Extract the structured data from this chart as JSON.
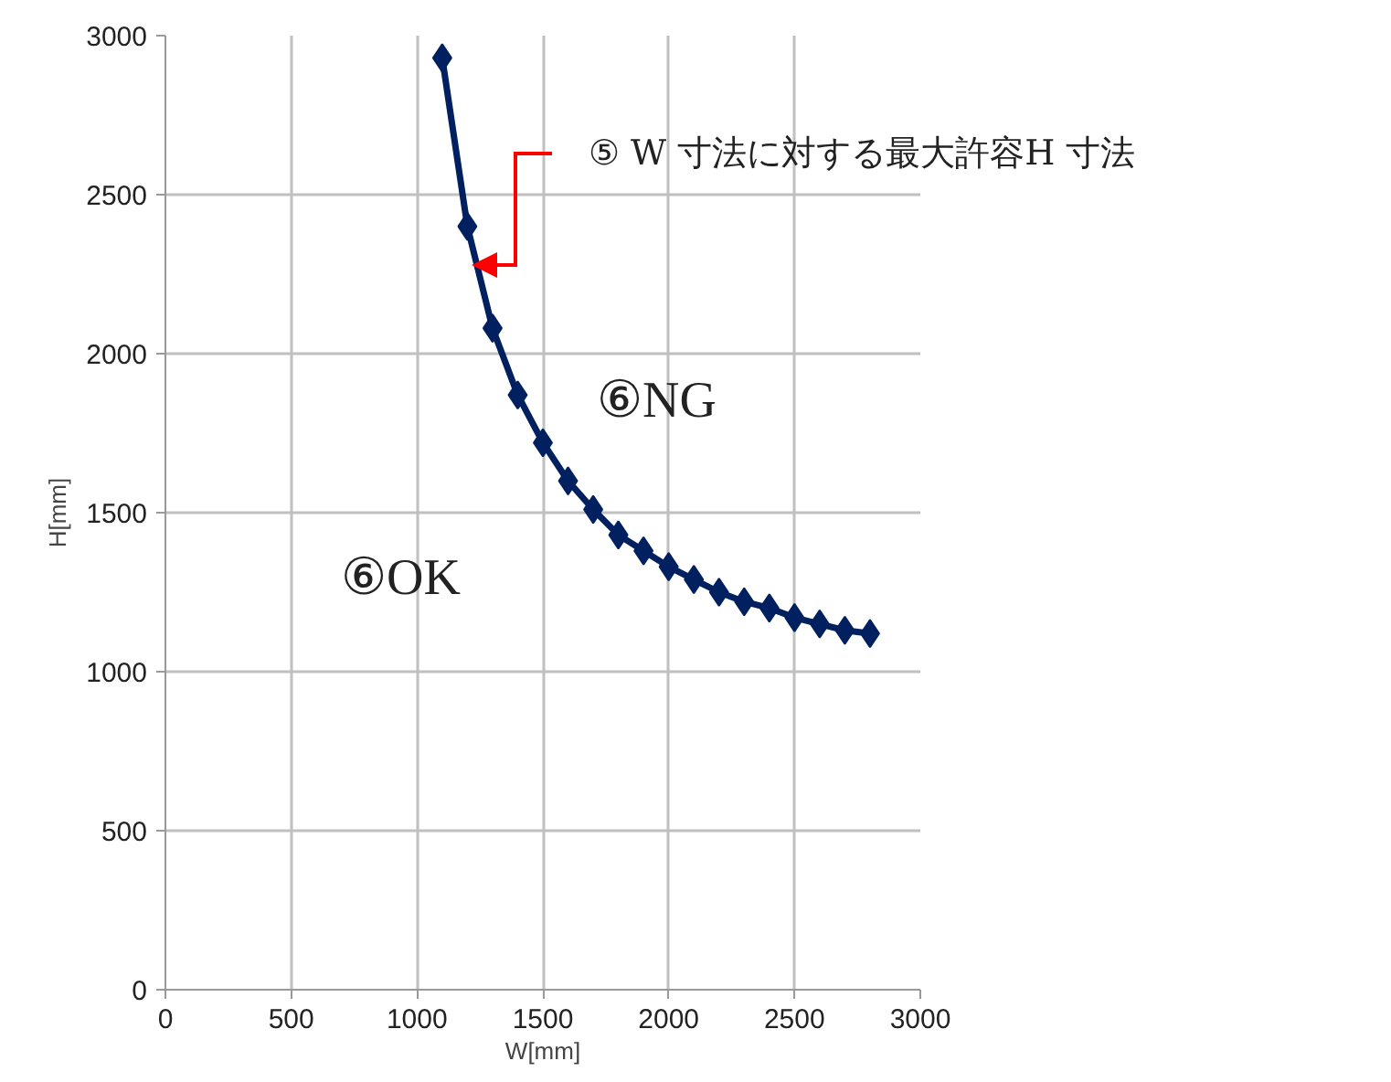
{
  "chart_data": {
    "type": "line",
    "xlabel": "W[mm]",
    "ylabel": "H[mm]",
    "x": [
      1100,
      1200,
      1300,
      1400,
      1500,
      1600,
      1700,
      1800,
      1900,
      2000,
      2100,
      2200,
      2300,
      2400,
      2500,
      2600,
      2700,
      2800
    ],
    "series": [
      {
        "color": "#002060",
        "values": [
          2930,
          2400,
          2080,
          1870,
          1720,
          1600,
          1510,
          1430,
          1380,
          1330,
          1290,
          1250,
          1220,
          1200,
          1170,
          1150,
          1130,
          1120
        ]
      }
    ],
    "xlim": [
      0,
      3000
    ],
    "ylim": [
      0,
      3000
    ],
    "xticks": [
      0,
      500,
      1000,
      1500,
      2000,
      2500,
      3000
    ],
    "yticks": [
      0,
      500,
      1000,
      1500,
      2000,
      2500,
      3000
    ],
    "grid": true,
    "marker": "diamond",
    "line_style": "solid",
    "annotations": [
      "⑤ W 寸法に対する最大許容H 寸法",
      "⑥NG",
      "⑥OK"
    ]
  }
}
